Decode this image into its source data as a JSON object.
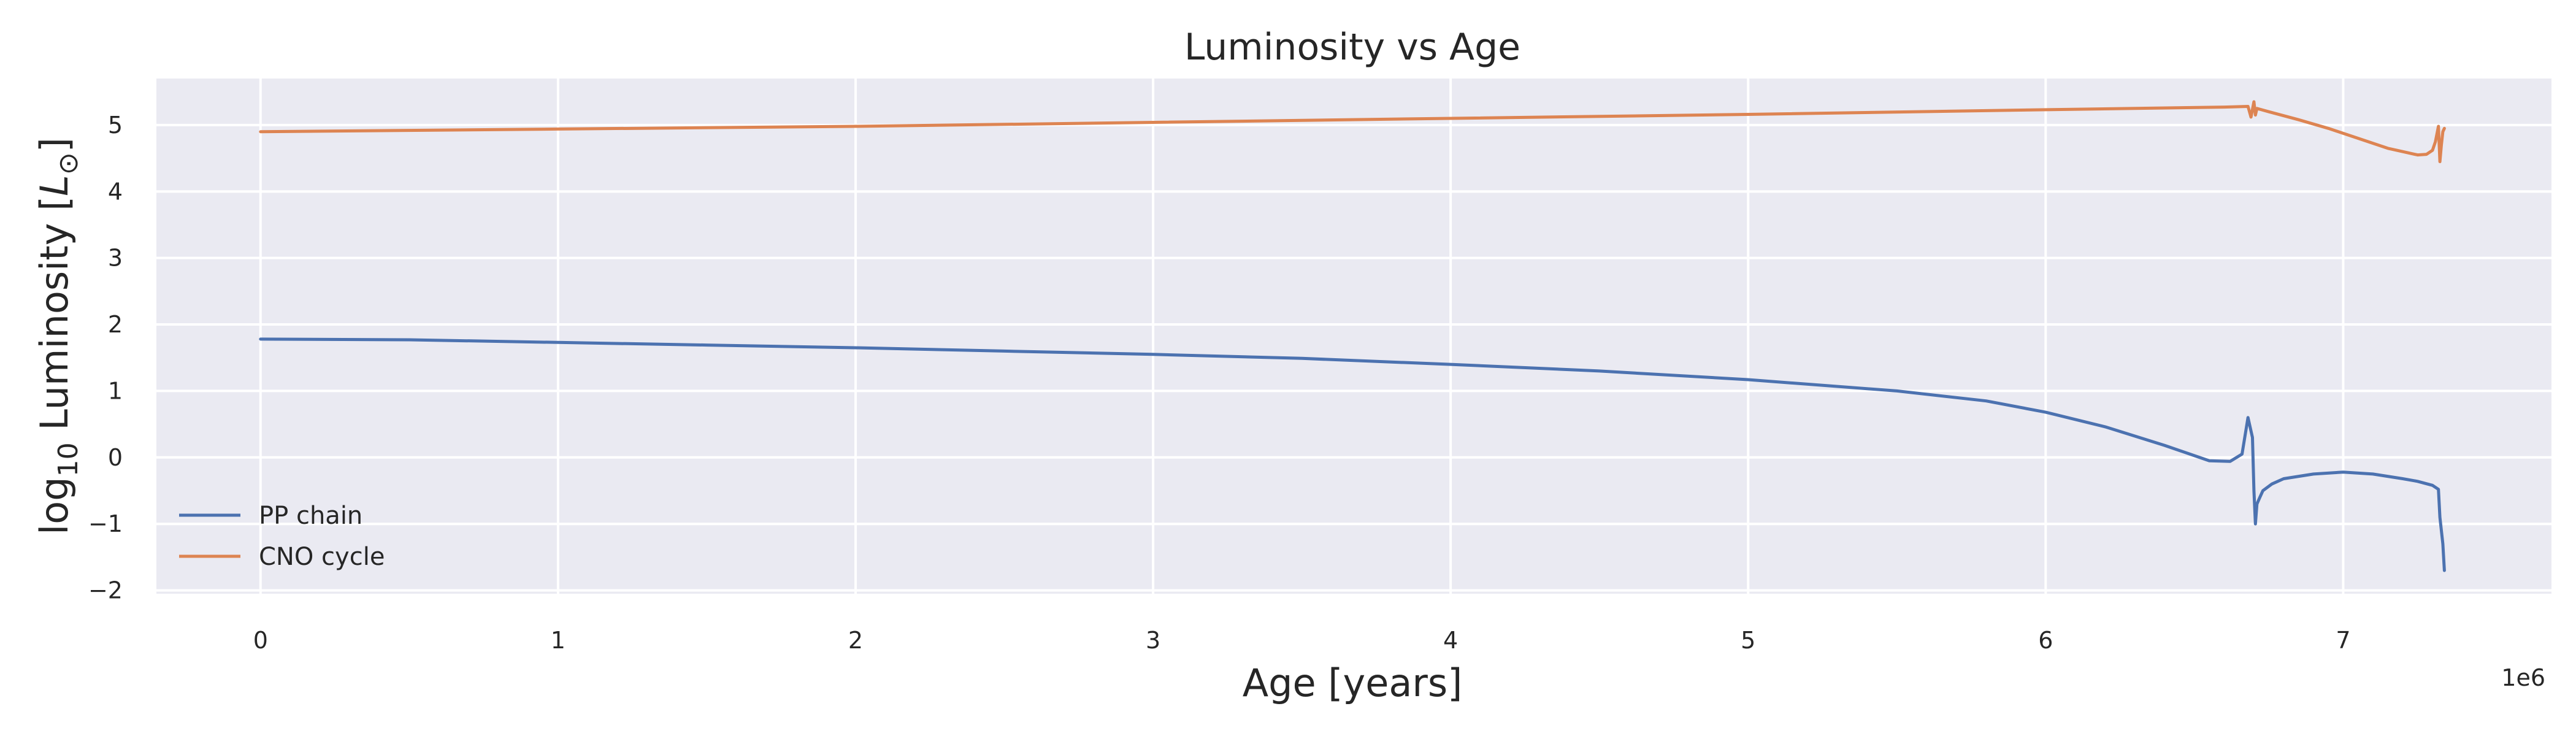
{
  "chart_data": {
    "type": "line",
    "title": "Luminosity vs Age",
    "xlabel": "Age [years]",
    "ylabel_parts": {
      "log": "log",
      "sub": "10",
      "rest": " Luminosity [",
      "L": "L",
      "sun": "⊙",
      "close": "]"
    },
    "x_offset_label": "1e6",
    "xlim": [
      -0.35,
      7.7
    ],
    "ylim": [
      -2.05,
      5.7
    ],
    "x_ticks": [
      0,
      1,
      2,
      3,
      4,
      5,
      6,
      7
    ],
    "y_ticks": [
      -2,
      -1,
      0,
      1,
      2,
      3,
      4,
      5
    ],
    "x_tick_labels": [
      "0",
      "1",
      "2",
      "3",
      "4",
      "5",
      "6",
      "7"
    ],
    "y_tick_labels": [
      "−2",
      "−1",
      "0",
      "1",
      "2",
      "3",
      "4",
      "5"
    ],
    "grid": true,
    "legend_position": "lower-left",
    "series": [
      {
        "name": "PP chain",
        "color": "#4C72B0",
        "x": [
          0,
          0.5,
          1,
          1.5,
          2,
          2.5,
          3,
          3.5,
          4,
          4.5,
          5,
          5.5,
          5.8,
          6.0,
          6.2,
          6.4,
          6.55,
          6.62,
          6.66,
          6.68,
          6.695,
          6.7,
          6.705,
          6.71,
          6.72,
          6.73,
          6.76,
          6.8,
          6.9,
          7.0,
          7.1,
          7.2,
          7.25,
          7.3,
          7.32,
          7.325,
          7.33,
          7.335,
          7.34
        ],
        "y": [
          1.78,
          1.77,
          1.73,
          1.69,
          1.65,
          1.6,
          1.55,
          1.49,
          1.4,
          1.3,
          1.17,
          1.0,
          0.85,
          0.68,
          0.46,
          0.18,
          -0.05,
          -0.06,
          0.05,
          0.6,
          0.3,
          -0.5,
          -1.0,
          -0.7,
          -0.6,
          -0.5,
          -0.4,
          -0.32,
          -0.25,
          -0.22,
          -0.25,
          -0.32,
          -0.36,
          -0.42,
          -0.48,
          -0.9,
          -1.1,
          -1.3,
          -1.7
        ]
      },
      {
        "name": "CNO cycle",
        "color": "#DD8452",
        "x": [
          0,
          1,
          2,
          3,
          4,
          5,
          6,
          6.6,
          6.68,
          6.69,
          6.7,
          6.705,
          6.71,
          6.75,
          6.85,
          6.95,
          7.05,
          7.15,
          7.2,
          7.25,
          7.28,
          7.3,
          7.31,
          7.32,
          7.325,
          7.33,
          7.335,
          7.34
        ],
        "y": [
          4.9,
          4.94,
          4.98,
          5.04,
          5.1,
          5.16,
          5.23,
          5.27,
          5.28,
          5.12,
          5.35,
          5.15,
          5.25,
          5.2,
          5.08,
          4.95,
          4.8,
          4.65,
          4.6,
          4.55,
          4.56,
          4.62,
          4.75,
          4.98,
          4.45,
          4.7,
          4.9,
          4.95
        ]
      }
    ]
  }
}
